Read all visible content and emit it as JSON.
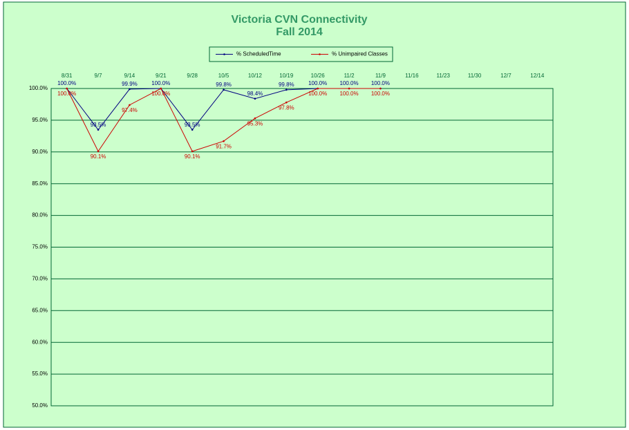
{
  "chart_data": {
    "type": "line",
    "title": "Victoria CVN Connectivity",
    "subtitle": "Fall 2014",
    "categories": [
      "8/31",
      "9/7",
      "9/14",
      "9/21",
      "9/28",
      "10/5",
      "10/12",
      "10/19",
      "10/26",
      "11/2",
      "11/9",
      "11/16",
      "11/23",
      "11/30",
      "12/7",
      "12/14"
    ],
    "series": [
      {
        "name": "% ScheduledTime",
        "color": "#000080",
        "values": [
          100.0,
          93.5,
          99.9,
          100.0,
          93.5,
          99.8,
          98.4,
          99.8,
          100.0,
          100.0,
          100.0,
          null,
          null,
          null,
          null,
          null
        ],
        "value_labels": [
          "100.0%",
          "93.5%",
          "99.9%",
          "100.0%",
          "93.5%",
          "99.8%",
          "98.4%",
          "99.8%",
          "100.0%",
          "100.0%",
          "100.0%",
          null,
          null,
          null,
          null,
          null
        ]
      },
      {
        "name": "% Unimpaired Classes",
        "color": "#cc0000",
        "values": [
          100.0,
          90.1,
          97.4,
          100.0,
          90.1,
          91.7,
          95.3,
          97.8,
          100.0,
          100.0,
          100.0,
          null,
          null,
          null,
          null,
          null
        ],
        "value_labels": [
          "100.0%",
          "90.1%",
          "97.4%",
          "100.0%",
          "90.1%",
          "91.7%",
          "95.3%",
          "97.8%",
          "100.0%",
          "100.0%",
          "100.0%",
          null,
          null,
          null,
          null,
          null
        ]
      }
    ],
    "ylim": [
      50,
      100
    ],
    "yticks": [
      {
        "value": 50,
        "label": "50.0%"
      },
      {
        "value": 55,
        "label": "55.0%"
      },
      {
        "value": 60,
        "label": "60.0%"
      },
      {
        "value": 65,
        "label": "65.0%"
      },
      {
        "value": 70,
        "label": "70.0%"
      },
      {
        "value": 75,
        "label": "75.0%"
      },
      {
        "value": 80,
        "label": "80.0%"
      },
      {
        "value": 85,
        "label": "85.0%"
      },
      {
        "value": 90,
        "label": "90.0%"
      },
      {
        "value": 95,
        "label": "95.0%"
      },
      {
        "value": 100,
        "label": "100.0%"
      }
    ],
    "grid": true,
    "legend": "top"
  }
}
